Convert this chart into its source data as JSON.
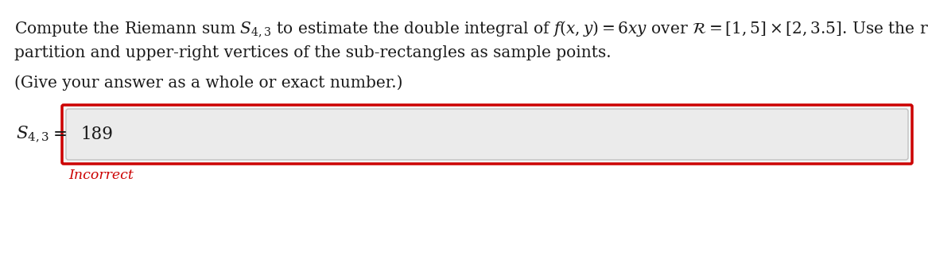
{
  "line1": "Compute the Riemann sum $S_{4,3}$ to estimate the double integral of $f(x, y) = 6xy$ over $\\mathcal{R} = [1, 5] \\times [2, 3.5]$. Use the regular",
  "line2": "partition and upper-right vertices of the sub-rectangles as sample points.",
  "line3": "(Give your answer as a whole or exact number.)",
  "answer_label": "$S_{4,3}$",
  "answer_eq": "=",
  "answer_value": "189",
  "incorrect_text": "Incorrect",
  "bg_color": "#ffffff",
  "text_color": "#1a1a1a",
  "incorrect_color": "#cc0000",
  "outer_box_bg": "#f5f5f5",
  "outer_box_border": "#cc0000",
  "inner_box_bg": "#ebebeb",
  "inner_box_border": "#c0c0c0",
  "fontsize": 14.5
}
